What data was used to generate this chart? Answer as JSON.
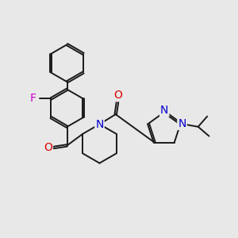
{
  "background_color": "#e8e8e8",
  "bond_color": "#1a1a1a",
  "atom_colors": {
    "O": "#dd0000",
    "N": "#0000cc",
    "F": "#cc00cc"
  },
  "font_size_atoms": 10
}
